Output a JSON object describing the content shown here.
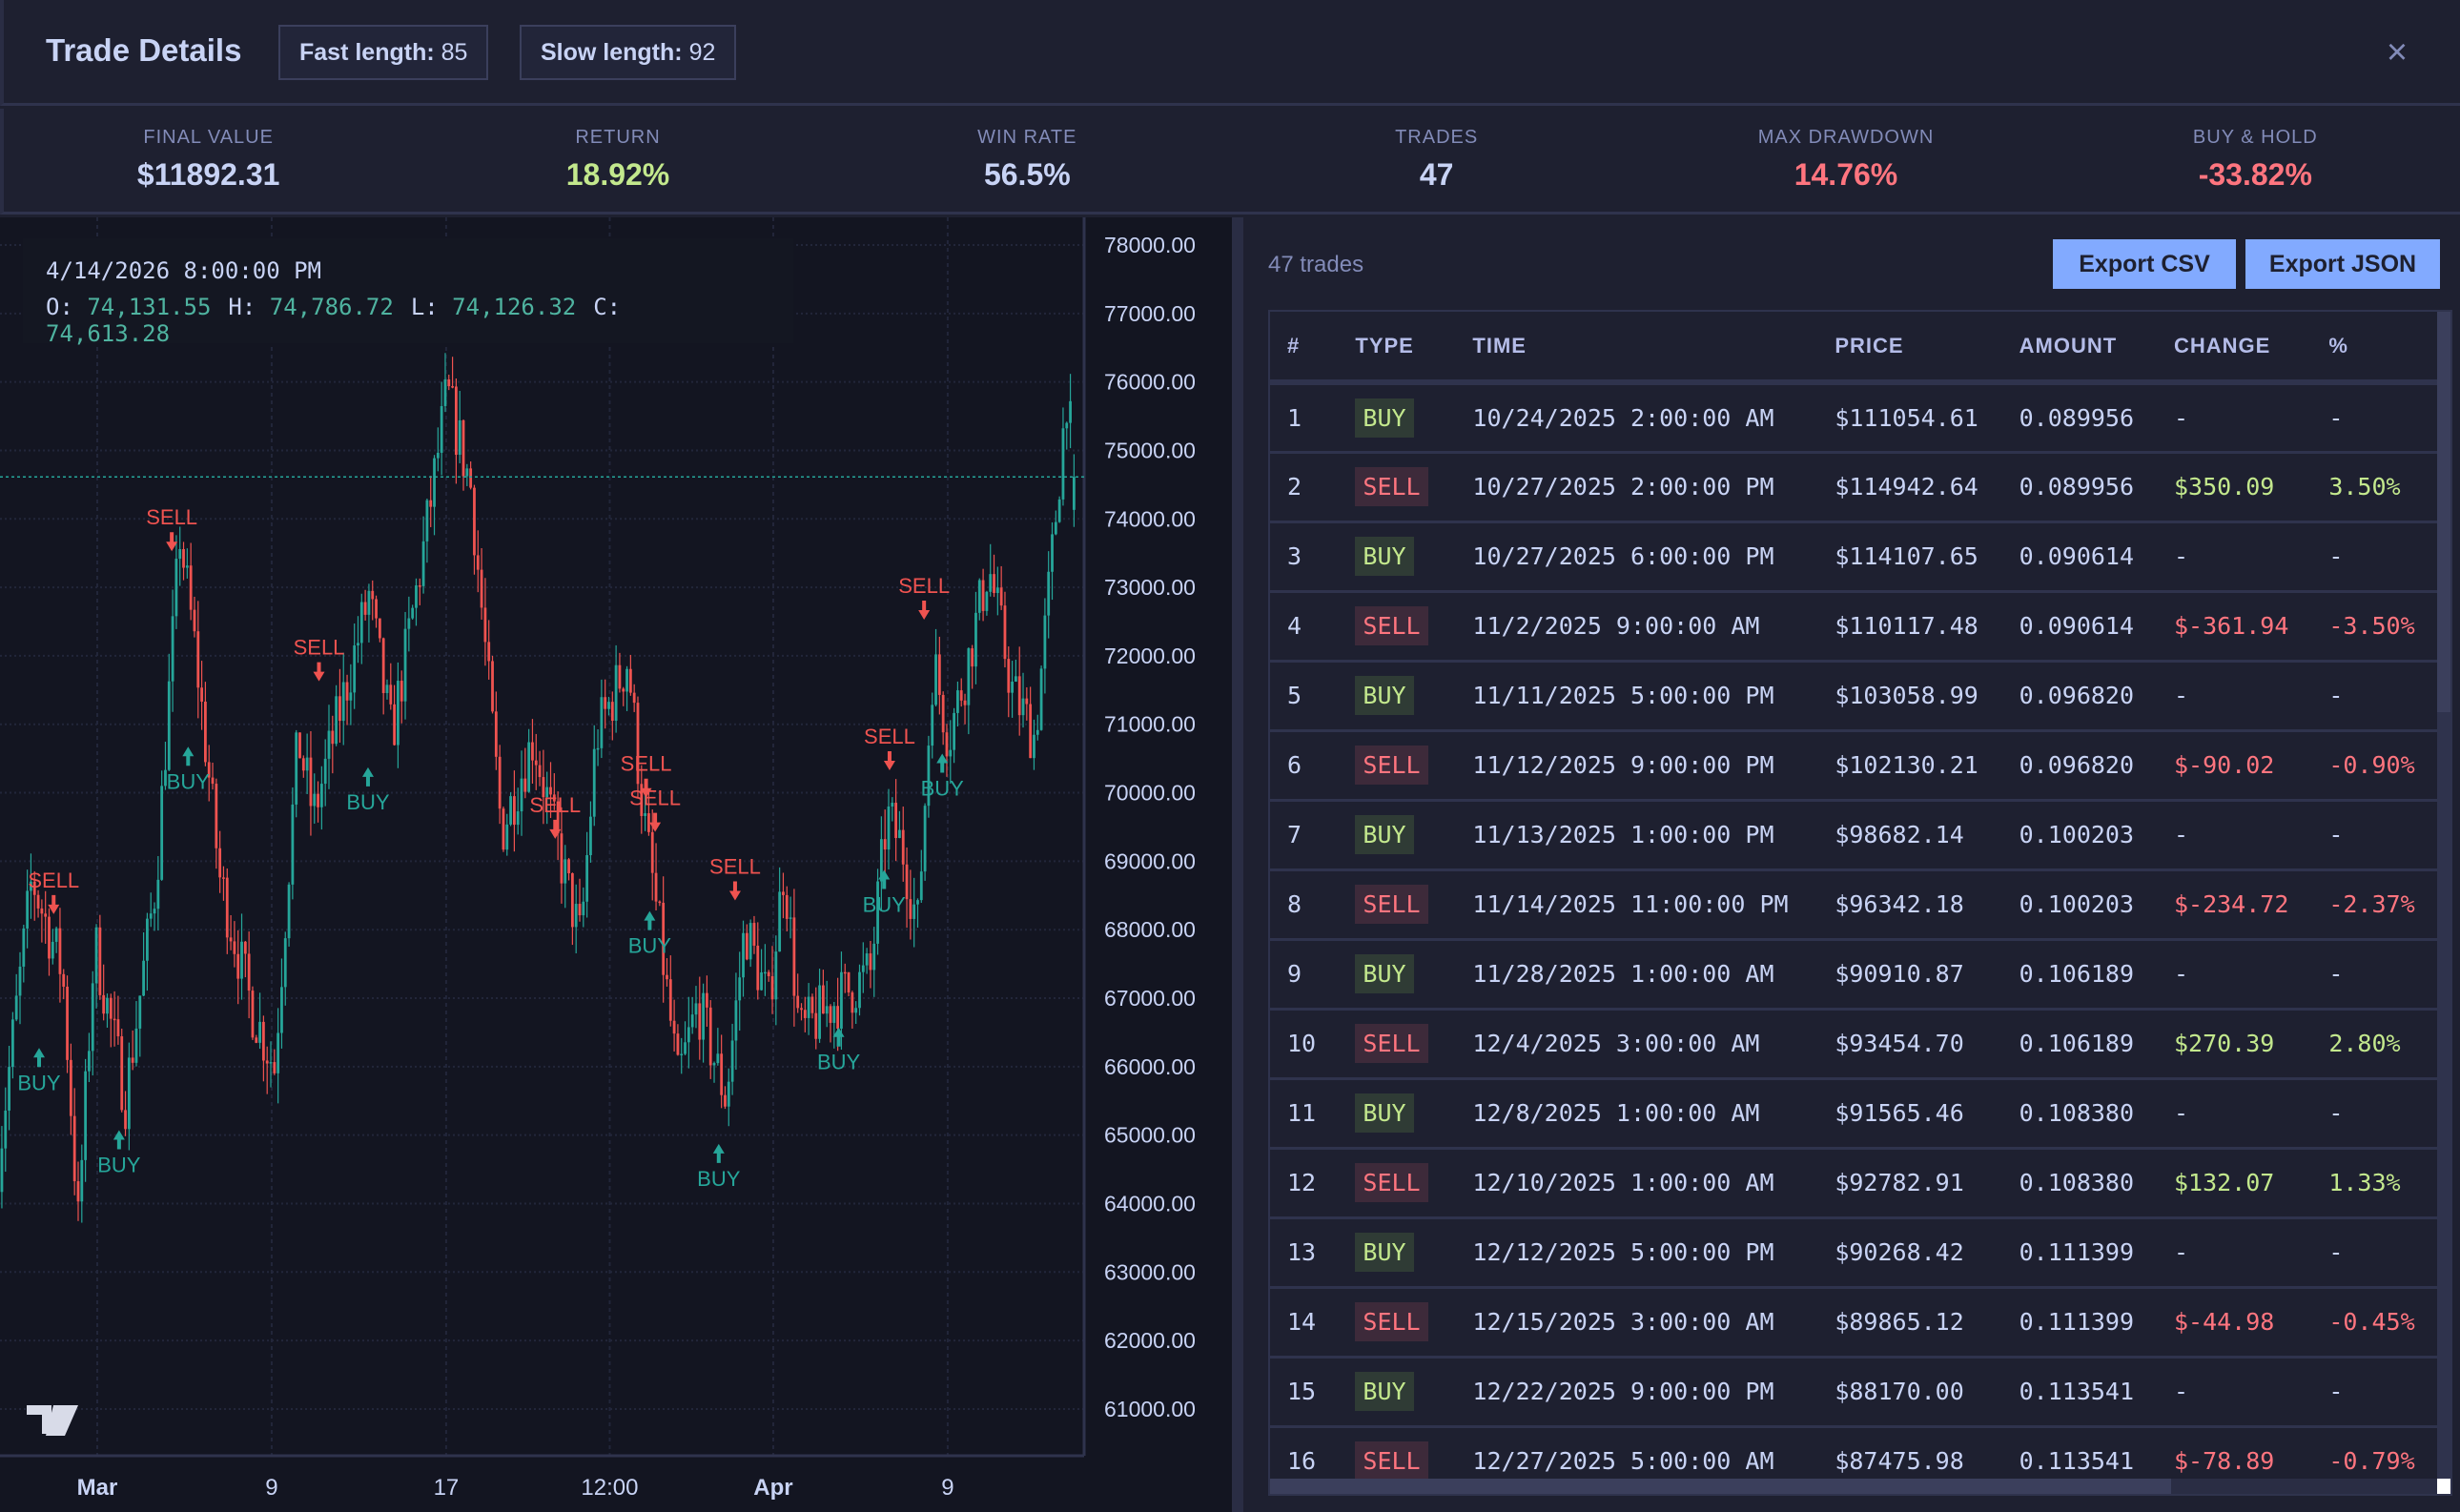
{
  "header": {
    "title": "Trade Details",
    "badges": [
      {
        "label": "Fast length:",
        "value": "85"
      },
      {
        "label": "Slow length:",
        "value": "92"
      }
    ],
    "close_icon": "×"
  },
  "stats": [
    {
      "label": "FINAL VALUE",
      "value": "$11892.31",
      "tone": "neutral"
    },
    {
      "label": "RETURN",
      "value": "18.92%",
      "tone": "positive"
    },
    {
      "label": "WIN RATE",
      "value": "56.5%",
      "tone": "neutral"
    },
    {
      "label": "TRADES",
      "value": "47",
      "tone": "neutral"
    },
    {
      "label": "MAX DRAWDOWN",
      "value": "14.76%",
      "tone": "negative"
    },
    {
      "label": "BUY & HOLD",
      "value": "-33.82%",
      "tone": "negative"
    }
  ],
  "colors": {
    "up": "#26a69a",
    "down": "#ef5350",
    "positive": "#c3e88d",
    "negative": "#ff757f",
    "accent": "#82aaff"
  },
  "chart_legend": {
    "datetime": "4/14/2026 8:00:00 PM",
    "o_label": "O:",
    "o": "74,131.55",
    "h_label": "H:",
    "h": "74,786.72",
    "l_label": "L:",
    "l": "74,126.32",
    "c_label": "C:",
    "c": "74,613.28"
  },
  "chart_data": {
    "type": "candlestick",
    "y_ticks": [
      "78000.00",
      "77000.00",
      "76000.00",
      "75000.00",
      "74000.00",
      "73000.00",
      "72000.00",
      "71000.00",
      "70000.00",
      "69000.00",
      "68000.00",
      "67000.00",
      "66000.00",
      "65000.00",
      "64000.00",
      "63000.00",
      "62000.00",
      "61000.00"
    ],
    "ylim": [
      60300,
      78700
    ],
    "x_ticks": [
      {
        "label": "Mar",
        "date": "2026-03-01T00:00"
      },
      {
        "label": "9",
        "date": "2026-03-09T00:00"
      },
      {
        "label": "17",
        "date": "2026-03-17T00:00"
      },
      {
        "label": "12:00",
        "date": "2026-03-24T12:00"
      },
      {
        "label": "Apr",
        "date": "2026-04-01T00:00"
      },
      {
        "label": "9",
        "date": "2026-04-09T00:00"
      }
    ],
    "last_price": 74613.28,
    "approx_close_path": [
      [
        "2026-02-24T11:00",
        64620
      ],
      [
        "2026-02-26T00:00",
        68744
      ],
      [
        "2026-02-27T10:00",
        67370
      ],
      [
        "2026-02-28T03:00",
        63704
      ],
      [
        "2026-02-28T21:00",
        67828
      ],
      [
        "2026-03-02T07:00",
        65537
      ],
      [
        "2026-03-03T17:00",
        68744
      ],
      [
        "2026-03-04T19:00",
        73785
      ],
      [
        "2026-03-05T13:00",
        71952
      ],
      [
        "2026-03-06T15:00",
        68744
      ],
      [
        "2026-03-08T01:00",
        66912
      ],
      [
        "2026-03-09T03:00",
        65995
      ],
      [
        "2026-03-10T05:00",
        70806
      ],
      [
        "2026-03-10T22:00",
        69661
      ],
      [
        "2026-03-12T00:00",
        71035
      ],
      [
        "2026-03-13T11:00",
        72868
      ],
      [
        "2026-03-14T12:00",
        70806
      ],
      [
        "2026-03-15T23:00",
        73555
      ],
      [
        "2026-03-17T01:00",
        75846
      ],
      [
        "2026-03-18T03:00",
        74472
      ],
      [
        "2026-03-18T20:00",
        71952
      ],
      [
        "2026-03-19T13:00",
        69432
      ],
      [
        "2026-03-21T00:00",
        70806
      ],
      [
        "2026-03-22T11:00",
        68744
      ],
      [
        "2026-03-23T04:00",
        67828
      ],
      [
        "2026-03-23T21:00",
        70806
      ],
      [
        "2026-03-25T08:00",
        71952
      ],
      [
        "2026-03-26T01:00",
        69661
      ],
      [
        "2026-03-26T18:00",
        68057
      ],
      [
        "2026-03-27T15:00",
        65766
      ],
      [
        "2026-03-28T13:00",
        66912
      ],
      [
        "2026-03-29T20:00",
        65537
      ],
      [
        "2026-03-30T17:00",
        68057
      ],
      [
        "2026-03-31T19:00",
        66912
      ],
      [
        "2026-04-01T12:00",
        68973
      ],
      [
        "2026-04-02T05:00",
        66453
      ],
      [
        "2026-04-03T16:00",
        66912
      ],
      [
        "2026-04-05T11:00",
        67370
      ],
      [
        "2026-04-06T05:00",
        69661
      ],
      [
        "2026-04-06T22:00",
        69203
      ],
      [
        "2026-04-07T15:00",
        68057
      ],
      [
        "2026-04-08T08:00",
        71952
      ],
      [
        "2026-04-09T01:00",
        70806
      ],
      [
        "2026-04-09T19:00",
        71723
      ],
      [
        "2026-04-10T21:00",
        73326
      ],
      [
        "2026-04-11T23:00",
        71495
      ],
      [
        "2026-04-13T00:00",
        70806
      ],
      [
        "2026-04-13T18:00",
        73326
      ],
      [
        "2026-04-14T11:00",
        75846
      ],
      [
        "2026-04-14T20:00",
        74613
      ]
    ],
    "markers": [
      {
        "type": "SELL",
        "date": "2026-02-27T00:00",
        "price": 68200
      },
      {
        "type": "BUY",
        "date": "2026-02-26T08:00",
        "price": 66300
      },
      {
        "type": "BUY",
        "date": "2026-03-02T00:00",
        "price": 65100
      },
      {
        "type": "SELL",
        "date": "2026-03-04T10:00",
        "price": 73500
      },
      {
        "type": "BUY",
        "date": "2026-03-05T04:00",
        "price": 70700
      },
      {
        "type": "SELL",
        "date": "2026-03-11T04:00",
        "price": 71600
      },
      {
        "type": "BUY",
        "date": "2026-03-13T10:00",
        "price": 70400
      },
      {
        "type": "SELL",
        "date": "2026-03-22T00:00",
        "price": 69300
      },
      {
        "type": "SELL",
        "date": "2026-03-26T04:00",
        "price": 69900
      },
      {
        "type": "SELL",
        "date": "2026-03-26T14:00",
        "price": 69400
      },
      {
        "type": "BUY",
        "date": "2026-03-26T08:00",
        "price": 68300
      },
      {
        "type": "BUY",
        "date": "2026-03-29T12:00",
        "price": 64900
      },
      {
        "type": "SELL",
        "date": "2026-03-30T06:00",
        "price": 68400
      },
      {
        "type": "BUY",
        "date": "2026-04-04T00:00",
        "price": 66600
      },
      {
        "type": "SELL",
        "date": "2026-04-06T08:00",
        "price": 70300
      },
      {
        "type": "BUY",
        "date": "2026-04-06T02:00",
        "price": 68900
      },
      {
        "type": "SELL",
        "date": "2026-04-07T22:00",
        "price": 72500
      },
      {
        "type": "BUY",
        "date": "2026-04-08T18:00",
        "price": 70600
      }
    ]
  },
  "trades_panel": {
    "count_label": "47 trades",
    "export_csv": "Export CSV",
    "export_json": "Export JSON",
    "columns": [
      "#",
      "TYPE",
      "TIME",
      "PRICE",
      "AMOUNT",
      "CHANGE",
      "%"
    ],
    "rows": [
      [
        "1",
        "BUY",
        "10/24/2025 2:00:00 AM",
        "$111054.61",
        "0.089956",
        "-",
        "-"
      ],
      [
        "2",
        "SELL",
        "10/27/2025 2:00:00 PM",
        "$114942.64",
        "0.089956",
        "$350.09",
        "3.50%"
      ],
      [
        "3",
        "BUY",
        "10/27/2025 6:00:00 PM",
        "$114107.65",
        "0.090614",
        "-",
        "-"
      ],
      [
        "4",
        "SELL",
        "11/2/2025 9:00:00 AM",
        "$110117.48",
        "0.090614",
        "$-361.94",
        "-3.50%"
      ],
      [
        "5",
        "BUY",
        "11/11/2025 5:00:00 PM",
        "$103058.99",
        "0.096820",
        "-",
        "-"
      ],
      [
        "6",
        "SELL",
        "11/12/2025 9:00:00 PM",
        "$102130.21",
        "0.096820",
        "$-90.02",
        "-0.90%"
      ],
      [
        "7",
        "BUY",
        "11/13/2025 1:00:00 PM",
        "$98682.14",
        "0.100203",
        "-",
        "-"
      ],
      [
        "8",
        "SELL",
        "11/14/2025 11:00:00 PM",
        "$96342.18",
        "0.100203",
        "$-234.72",
        "-2.37%"
      ],
      [
        "9",
        "BUY",
        "11/28/2025 1:00:00 AM",
        "$90910.87",
        "0.106189",
        "-",
        "-"
      ],
      [
        "10",
        "SELL",
        "12/4/2025 3:00:00 AM",
        "$93454.70",
        "0.106189",
        "$270.39",
        "2.80%"
      ],
      [
        "11",
        "BUY",
        "12/8/2025 1:00:00 AM",
        "$91565.46",
        "0.108380",
        "-",
        "-"
      ],
      [
        "12",
        "SELL",
        "12/10/2025 1:00:00 AM",
        "$92782.91",
        "0.108380",
        "$132.07",
        "1.33%"
      ],
      [
        "13",
        "BUY",
        "12/12/2025 5:00:00 PM",
        "$90268.42",
        "0.111399",
        "-",
        "-"
      ],
      [
        "14",
        "SELL",
        "12/15/2025 3:00:00 AM",
        "$89865.12",
        "0.111399",
        "$-44.98",
        "-0.45%"
      ],
      [
        "15",
        "BUY",
        "12/22/2025 9:00:00 PM",
        "$88170.00",
        "0.113541",
        "-",
        "-"
      ],
      [
        "16",
        "SELL",
        "12/27/2025 5:00:00 AM",
        "$87475.98",
        "0.113541",
        "$-78.89",
        "-0.79%"
      ]
    ]
  }
}
